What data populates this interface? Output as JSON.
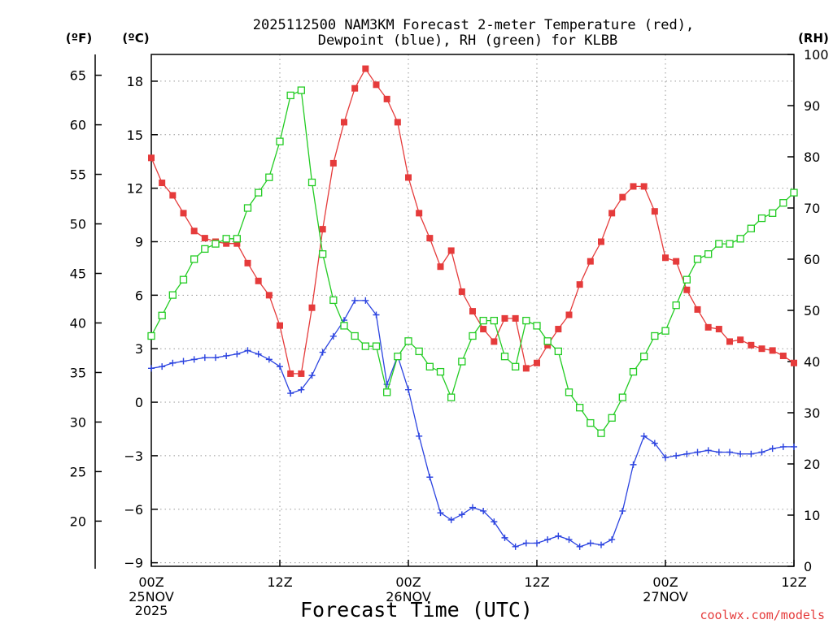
{
  "chart_data": {
    "type": "line",
    "title_line1": "2025112500 NAM3KM Forecast 2-meter Temperature (red),",
    "title_line2": "Dewpoint (blue), RH (green) for KLBB",
    "xlabel": "Forecast Time (UTC)",
    "credit": "coolwx.com/models",
    "left_unit_f": "(ºF)",
    "left_unit_c": "(ºC)",
    "right_unit": "(RH)",
    "x_range_hours": [
      0,
      60
    ],
    "ylim_c": [
      -9.2,
      19.5
    ],
    "ylim_rh": [
      0,
      100
    ],
    "yticks_c": [
      "18",
      "15",
      "12",
      "9",
      "6",
      "3",
      "0",
      "−3",
      "−6",
      "−9"
    ],
    "yticks_c_values": [
      18,
      15,
      12,
      9,
      6,
      3,
      0,
      -3,
      -6,
      -9
    ],
    "yticks_f": [
      "65",
      "60",
      "55",
      "50",
      "45",
      "40",
      "35",
      "30",
      "25",
      "20"
    ],
    "yticks_f_values": [
      65,
      60,
      55,
      50,
      45,
      40,
      35,
      30,
      25,
      20
    ],
    "yticks_rh": [
      "100",
      "90",
      "80",
      "70",
      "60",
      "50",
      "40",
      "30",
      "20",
      "10",
      "0"
    ],
    "yticks_rh_values": [
      100,
      90,
      80,
      70,
      60,
      50,
      40,
      30,
      20,
      10,
      0
    ],
    "xticks": [
      {
        "hour": 0,
        "label": "00Z",
        "date": "25NOV",
        "year": "2025"
      },
      {
        "hour": 12,
        "label": "12Z",
        "date": "",
        "year": ""
      },
      {
        "hour": 24,
        "label": "00Z",
        "date": "26NOV",
        "year": ""
      },
      {
        "hour": 36,
        "label": "12Z",
        "date": "",
        "year": ""
      },
      {
        "hour": 48,
        "label": "00Z",
        "date": "27NOV",
        "year": ""
      },
      {
        "hour": 60,
        "label": "12Z",
        "date": "",
        "year": ""
      }
    ],
    "series": [
      {
        "name": "Temperature",
        "units": "C",
        "color": "#e53b3b",
        "marker": "filled-square",
        "x": [
          0,
          1,
          2,
          3,
          4,
          5,
          6,
          7,
          8,
          9,
          10,
          11,
          12,
          13,
          14,
          15,
          16,
          17,
          18,
          19,
          20,
          21,
          22,
          23,
          24,
          25,
          26,
          27,
          28,
          29,
          30,
          31,
          32,
          33,
          34,
          35,
          36,
          37,
          38,
          39,
          40,
          41,
          42,
          43,
          44,
          45,
          46,
          47,
          48,
          49,
          50,
          51,
          52,
          53,
          54,
          55,
          56,
          57,
          58,
          59,
          60
        ],
        "values": [
          13.7,
          12.3,
          11.6,
          10.6,
          9.6,
          9.2,
          9.0,
          8.9,
          8.9,
          7.8,
          6.8,
          6.0,
          4.3,
          1.6,
          1.6,
          5.3,
          9.7,
          13.4,
          15.7,
          17.6,
          18.7,
          17.8,
          17.0,
          15.7,
          12.6,
          10.6,
          9.2,
          7.6,
          8.5,
          6.2,
          5.1,
          4.1,
          3.4,
          4.7,
          4.7,
          1.9,
          2.2,
          3.2,
          4.1,
          4.9,
          6.6,
          7.9,
          9.0,
          10.6,
          11.5,
          12.1,
          12.1,
          10.7,
          8.1,
          7.9,
          6.3,
          5.2,
          4.2,
          4.1,
          3.4,
          3.5,
          3.2,
          3.0,
          2.9,
          2.6,
          2.2
        ]
      },
      {
        "name": "Dewpoint",
        "units": "C",
        "color": "#2c44e0",
        "marker": "plus",
        "x": [
          0,
          1,
          2,
          3,
          4,
          5,
          6,
          7,
          8,
          9,
          10,
          11,
          12,
          13,
          14,
          15,
          16,
          17,
          18,
          19,
          20,
          21,
          22,
          23,
          24,
          25,
          26,
          27,
          28,
          29,
          30,
          31,
          32,
          33,
          34,
          35,
          36,
          37,
          38,
          39,
          40,
          41,
          42,
          43,
          44,
          45,
          46,
          47,
          48,
          49,
          50,
          51,
          52,
          53,
          54,
          55,
          56,
          57,
          58,
          59,
          60
        ],
        "values": [
          1.9,
          2.0,
          2.2,
          2.3,
          2.4,
          2.5,
          2.5,
          2.6,
          2.7,
          2.9,
          2.7,
          2.4,
          2.0,
          0.5,
          0.7,
          1.5,
          2.8,
          3.7,
          4.6,
          5.7,
          5.7,
          4.9,
          1.0,
          2.6,
          0.7,
          -1.9,
          -4.2,
          -6.2,
          -6.6,
          -6.3,
          -5.9,
          -6.1,
          -6.7,
          -7.6,
          -8.1,
          -7.9,
          -7.9,
          -7.7,
          -7.5,
          -7.7,
          -8.1,
          -7.9,
          -8.0,
          -7.7,
          -6.1,
          -3.5,
          -1.9,
          -2.3,
          -3.1,
          -3.0,
          -2.9,
          -2.8,
          -2.7,
          -2.8,
          -2.8,
          -2.9,
          -2.9,
          -2.8,
          -2.6,
          -2.5,
          -2.5
        ]
      },
      {
        "name": "RH",
        "units": "%",
        "color": "#23cc23",
        "marker": "open-square",
        "x": [
          0,
          1,
          2,
          3,
          4,
          5,
          6,
          7,
          8,
          9,
          10,
          11,
          12,
          13,
          14,
          15,
          16,
          17,
          18,
          19,
          20,
          21,
          22,
          23,
          24,
          25,
          26,
          27,
          28,
          29,
          30,
          31,
          32,
          33,
          34,
          35,
          36,
          37,
          38,
          39,
          40,
          41,
          42,
          43,
          44,
          45,
          46,
          47,
          48,
          49,
          50,
          51,
          52,
          53,
          54,
          55,
          56,
          57,
          58,
          59,
          60
        ],
        "values": [
          45,
          49,
          53,
          56,
          60,
          62,
          63,
          64,
          64,
          70,
          73,
          76,
          83,
          92,
          93,
          75,
          61,
          52,
          47,
          45,
          43,
          43,
          34,
          41,
          44,
          42,
          39,
          38,
          33,
          40,
          45,
          48,
          48,
          41,
          39,
          48,
          47,
          44,
          42,
          34,
          31,
          28,
          26,
          29,
          33,
          38,
          41,
          45,
          46,
          51,
          56,
          60,
          61,
          63,
          63,
          64,
          66,
          68,
          69,
          71,
          73
        ]
      }
    ]
  }
}
